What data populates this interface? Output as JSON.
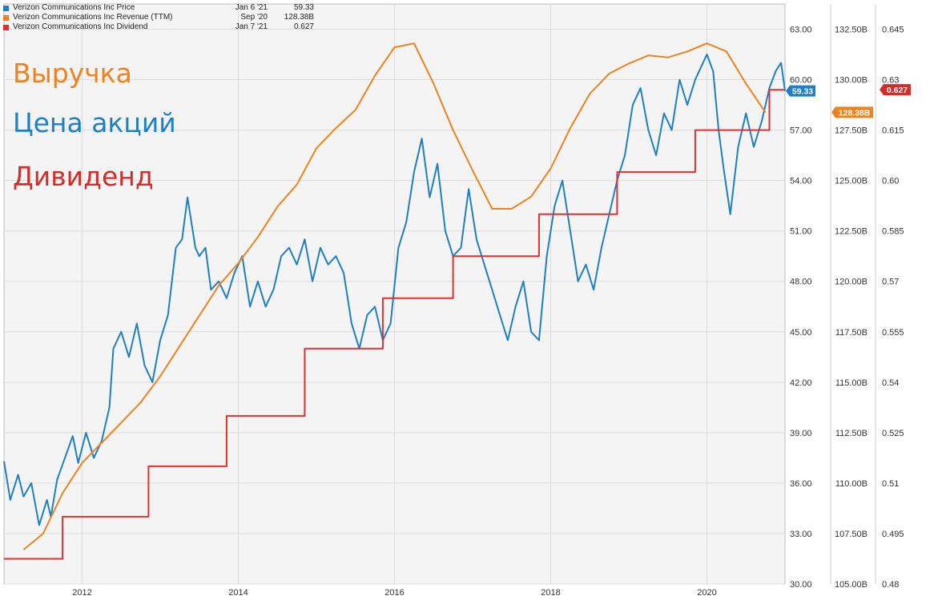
{
  "overlay_labels": {
    "revenue": "Выручка",
    "price": "Цена акций",
    "dividend": "Дивиденд"
  },
  "legend": [
    {
      "name": "Verizon Communications Inc Price",
      "date": "Jan 6 '21",
      "value": "59.33",
      "color": "#1f7fc4"
    },
    {
      "name": "Verizon Communications Inc Revenue (TTM)",
      "date": "Sep '20",
      "value": "128.38B",
      "color": "#f0821e"
    },
    {
      "name": "Verizon Communications Inc Dividend",
      "date": "Jan 7 '21",
      "value": "0.627",
      "color": "#e03030"
    }
  ],
  "badges": {
    "price": "59.33",
    "revenue": "128.38B",
    "dividend": "0.627"
  },
  "chart_data": {
    "type": "line",
    "x_ticks": [
      "2012",
      "2014",
      "2016",
      "2018",
      "2020"
    ],
    "xlim": [
      2011.0,
      2021.0
    ],
    "grid": true,
    "axes": {
      "price": {
        "ylim": [
          30,
          64.5
        ],
        "ticks": [
          "30.00",
          "33.00",
          "36.00",
          "39.00",
          "42.00",
          "45.00",
          "48.00",
          "51.00",
          "54.00",
          "57.00",
          "60.00",
          "63.00"
        ]
      },
      "revenue": {
        "ylim": [
          105,
          133.75
        ],
        "ticks": [
          "105.00B",
          "107.50B",
          "110.00B",
          "112.50B",
          "115.00B",
          "117.50B",
          "120.00B",
          "122.50B",
          "125.00B",
          "127.50B",
          "130.00B",
          "132.50B"
        ]
      },
      "dividend": {
        "ylim": [
          0.48,
          0.6525
        ],
        "ticks": [
          "0.48",
          "0.495",
          "0.51",
          "0.525",
          "0.54",
          "0.555",
          "0.57",
          "0.585",
          "0.60",
          "0.615",
          "0.63",
          "0.645"
        ]
      }
    },
    "series": [
      {
        "axis": "price",
        "color": "#1f7fc4",
        "x": [
          2011.0,
          2011.08,
          2011.18,
          2011.25,
          2011.35,
          2011.45,
          2011.55,
          2011.6,
          2011.68,
          2011.78,
          2011.88,
          2011.95,
          2012.05,
          2012.15,
          2012.25,
          2012.35,
          2012.4,
          2012.5,
          2012.6,
          2012.7,
          2012.8,
          2012.9,
          2013.0,
          2013.1,
          2013.2,
          2013.28,
          2013.35,
          2013.45,
          2013.5,
          2013.58,
          2013.65,
          2013.75,
          2013.85,
          2013.95,
          2014.05,
          2014.15,
          2014.25,
          2014.35,
          2014.45,
          2014.55,
          2014.65,
          2014.75,
          2014.85,
          2014.95,
          2015.05,
          2015.15,
          2015.25,
          2015.35,
          2015.45,
          2015.55,
          2015.65,
          2015.75,
          2015.85,
          2015.95,
          2016.05,
          2016.15,
          2016.25,
          2016.35,
          2016.45,
          2016.55,
          2016.65,
          2016.75,
          2016.85,
          2016.95,
          2017.05,
          2017.15,
          2017.25,
          2017.35,
          2017.45,
          2017.55,
          2017.65,
          2017.75,
          2017.85,
          2017.95,
          2018.05,
          2018.15,
          2018.25,
          2018.35,
          2018.45,
          2018.55,
          2018.65,
          2018.75,
          2018.85,
          2018.95,
          2019.05,
          2019.15,
          2019.25,
          2019.35,
          2019.45,
          2019.55,
          2019.65,
          2019.75,
          2019.85,
          2019.95,
          2020.0,
          2020.08,
          2020.15,
          2020.22,
          2020.3,
          2020.4,
          2020.5,
          2020.6,
          2020.7,
          2020.8,
          2020.88,
          2020.95,
          2021.0
        ],
        "y": [
          37.3,
          35.0,
          36.5,
          35.2,
          36.0,
          33.5,
          35.0,
          34.0,
          36.2,
          37.5,
          38.8,
          37.2,
          39.0,
          37.5,
          38.5,
          40.5,
          44.0,
          45.0,
          43.5,
          45.5,
          43.0,
          42.0,
          44.5,
          46.0,
          50.0,
          50.5,
          53.0,
          50.0,
          49.5,
          50.0,
          47.5,
          48.0,
          47.0,
          48.5,
          49.5,
          46.5,
          48.0,
          46.5,
          47.5,
          49.5,
          50.0,
          49.0,
          50.5,
          48.0,
          50.0,
          49.0,
          49.5,
          48.5,
          45.5,
          44.0,
          46.0,
          46.5,
          44.5,
          45.5,
          50.0,
          51.5,
          54.5,
          56.5,
          53.0,
          55.0,
          51.0,
          49.5,
          50.0,
          53.5,
          50.5,
          49.0,
          47.5,
          46.0,
          44.5,
          46.5,
          48.0,
          45.0,
          44.5,
          49.5,
          52.5,
          54.0,
          51.0,
          48.0,
          49.0,
          47.5,
          50.0,
          52.0,
          54.0,
          55.5,
          58.5,
          59.5,
          57.0,
          55.5,
          58.0,
          57.0,
          60.0,
          58.5,
          60.0,
          61.0,
          61.5,
          60.5,
          57.0,
          54.5,
          52.0,
          56.0,
          58.0,
          56.0,
          57.5,
          59.5,
          60.5,
          61.0,
          59.33
        ]
      },
      {
        "axis": "revenue",
        "color": "#f0821e",
        "x": [
          2011.25,
          2011.5,
          2011.75,
          2012.0,
          2012.25,
          2012.5,
          2012.75,
          2013.0,
          2013.25,
          2013.5,
          2013.75,
          2014.0,
          2014.25,
          2014.5,
          2014.75,
          2015.0,
          2015.25,
          2015.5,
          2015.75,
          2016.0,
          2016.25,
          2016.5,
          2016.75,
          2017.0,
          2017.25,
          2017.5,
          2017.75,
          2018.0,
          2018.25,
          2018.5,
          2018.75,
          2019.0,
          2019.25,
          2019.5,
          2019.75,
          2020.0,
          2020.25,
          2020.5,
          2020.75
        ],
        "y": [
          106.7,
          107.5,
          109.5,
          111.0,
          112.0,
          113.0,
          114.0,
          115.3,
          116.8,
          118.3,
          119.8,
          120.9,
          122.2,
          123.7,
          124.8,
          126.6,
          127.6,
          128.5,
          130.2,
          131.6,
          131.8,
          129.8,
          127.5,
          125.5,
          123.6,
          123.6,
          124.2,
          125.6,
          127.6,
          129.3,
          130.3,
          130.8,
          131.2,
          131.1,
          131.4,
          131.8,
          131.4,
          129.8,
          128.38
        ]
      },
      {
        "axis": "dividend",
        "color": "#e03030",
        "step": true,
        "x": [
          2011.0,
          2011.5,
          2011.75,
          2012.6,
          2012.85,
          2013.6,
          2013.85,
          2014.6,
          2014.85,
          2015.6,
          2015.85,
          2016.5,
          2016.75,
          2017.6,
          2017.85,
          2018.6,
          2018.85,
          2019.6,
          2019.85,
          2020.55,
          2020.8,
          2021.0
        ],
        "y": [
          0.4875,
          0.4875,
          0.5,
          0.5,
          0.515,
          0.515,
          0.53,
          0.53,
          0.55,
          0.55,
          0.565,
          0.565,
          0.5775,
          0.5775,
          0.59,
          0.59,
          0.6025,
          0.6025,
          0.615,
          0.615,
          0.627,
          0.627
        ]
      }
    ]
  }
}
